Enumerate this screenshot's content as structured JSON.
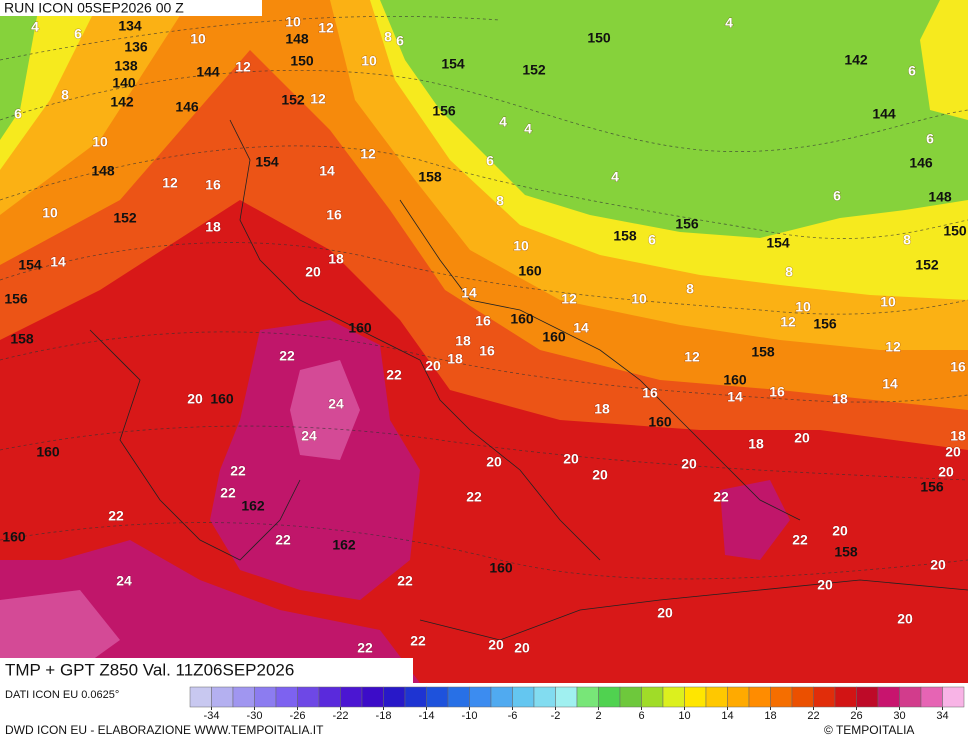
{
  "header": {
    "run": "RUN ICON 05SEP2026 00 Z"
  },
  "footer": {
    "title": "TMP + GPT Z850 Val. 11Z06SEP2026",
    "source": "DATI ICON EU 0.0625°",
    "credit": "DWD ICON EU - ELABORAZIONE WWW.TEMPOITALIA.IT",
    "copyright": "© TEMPOITALIA"
  },
  "legend": {
    "clim": [
      -36,
      36
    ],
    "ticks": [
      -34,
      -30,
      -26,
      -22,
      -18,
      -14,
      -10,
      -6,
      -2,
      2,
      6,
      10,
      14,
      18,
      22,
      26,
      30,
      34
    ],
    "colors": [
      "#c8c8f0",
      "#b4b0f0",
      "#a096f0",
      "#8c7cf0",
      "#7d62f0",
      "#6e48e6",
      "#5a2adc",
      "#4b16d2",
      "#3c0cc8",
      "#2818c8",
      "#1e34d2",
      "#1e52dc",
      "#2870e6",
      "#3c8cf0",
      "#50aaf0",
      "#64c6f0",
      "#82dcf0",
      "#a0f0f0",
      "#78e678",
      "#50d250",
      "#6ec83c",
      "#a0dc28",
      "#dcf01e",
      "#ffe600",
      "#ffc800",
      "#ffaa00",
      "#ff8c00",
      "#f56e00",
      "#eb5000",
      "#e12d0a",
      "#d21414",
      "#be0a28",
      "#c8146e",
      "#d23c8c",
      "#e664b4",
      "#f8b4e6"
    ]
  },
  "map": {
    "labels": [
      "4",
      "6",
      "134",
      "136",
      "138",
      "140",
      "142",
      "10",
      "144",
      "146",
      "12",
      "10",
      "148",
      "12",
      "150",
      "8",
      "10",
      "6",
      "152",
      "12",
      "8",
      "6",
      "10",
      "148",
      "12",
      "16",
      "154",
      "14",
      "12",
      "158",
      "10",
      "152",
      "18",
      "16",
      "154",
      "14",
      "20",
      "18",
      "156",
      "158",
      "160",
      "22",
      "22",
      "20",
      "18",
      "18",
      "16",
      "16",
      "14",
      "160",
      "160",
      "14",
      "12",
      "10",
      "8",
      "160",
      "10",
      "8",
      "6",
      "156",
      "154",
      "152",
      "150",
      "4",
      "142",
      "6",
      "144",
      "6",
      "146",
      "6",
      "148",
      "156",
      "158",
      "6",
      "4",
      "4",
      "4",
      "154",
      "8",
      "150",
      "152",
      "8",
      "10",
      "12",
      "156",
      "10",
      "12",
      "16",
      "14",
      "158",
      "12",
      "160",
      "14",
      "16",
      "16",
      "18",
      "18",
      "160",
      "18",
      "20",
      "18",
      "20",
      "20",
      "20",
      "156",
      "20",
      "20",
      "20",
      "22",
      "22",
      "20",
      "22",
      "158",
      "20",
      "20",
      "20",
      "20",
      "160",
      "22",
      "22",
      "20",
      "20",
      "22",
      "20",
      "160",
      "24",
      "24",
      "22",
      "22",
      "162",
      "22",
      "162",
      "22",
      "160",
      "24",
      "160"
    ]
  }
}
